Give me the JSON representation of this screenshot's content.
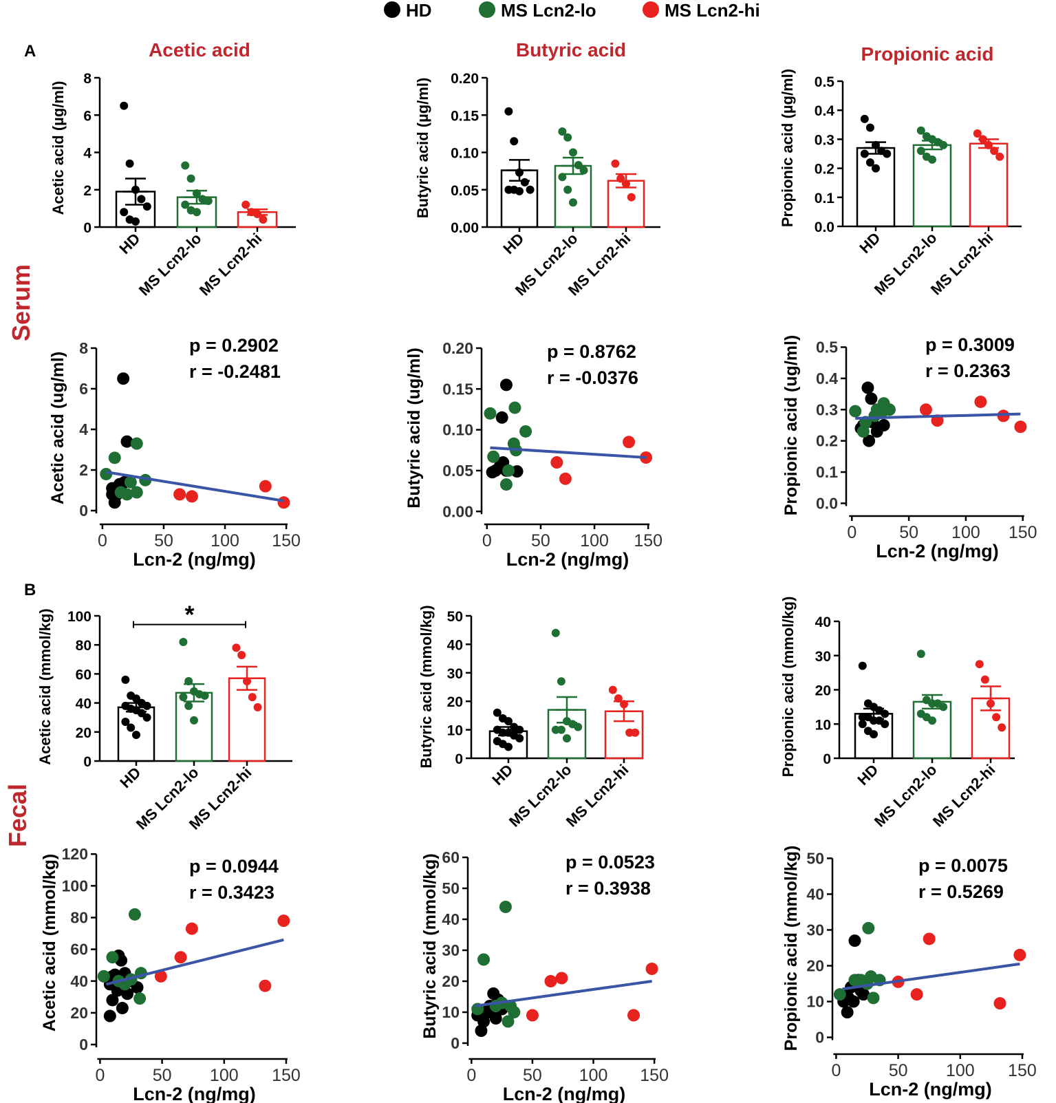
{
  "figure": {
    "legend": [
      {
        "label": "HD",
        "color": "#000000"
      },
      {
        "label": "MS Lcn2-lo",
        "color": "#1f6e34"
      },
      {
        "label": "MS Lcn2-hi",
        "color": "#e8231f"
      }
    ],
    "panel_labels": [
      "A",
      "B"
    ],
    "row_labels": [
      "Serum",
      "Fecal"
    ],
    "title_color": "#c0272d",
    "regression_color": "#3a54a6"
  },
  "chart_data": [
    {
      "id": "serum-acetic-bar",
      "type": "bar",
      "title": "Acetic acid",
      "ylabel": "Acetic acid (µg/ml)",
      "ylim": [
        0,
        8
      ],
      "yticks": [
        0,
        2,
        4,
        6,
        8
      ],
      "categories": [
        "HD",
        "MS Lcn2-lo",
        "MS Lcn2-hi"
      ],
      "values": [
        1.9,
        1.6,
        0.8
      ],
      "sem": [
        0.7,
        0.35,
        0.15
      ],
      "points": [
        [
          6.5,
          3.4,
          2.0,
          1.5,
          1.1,
          0.8,
          0.4,
          0.3
        ],
        [
          3.3,
          2.6,
          1.8,
          1.5,
          1.4,
          1.2,
          0.9,
          0.8
        ],
        [
          1.2,
          0.8,
          0.7,
          0.4
        ]
      ],
      "significance": ""
    },
    {
      "id": "serum-butyric-bar",
      "type": "bar",
      "title": "Butyric acid",
      "ylabel": "Butyric acid (µg/ml)",
      "ylim": [
        0,
        0.2
      ],
      "yticks": [
        0.0,
        0.05,
        0.1,
        0.15,
        0.2
      ],
      "tick_format": "0.00",
      "categories": [
        "HD",
        "MS Lcn2-lo",
        "MS Lcn2-hi"
      ],
      "values": [
        0.076,
        0.082,
        0.062
      ],
      "sem": [
        0.014,
        0.011,
        0.009
      ],
      "points": [
        [
          0.155,
          0.115,
          0.073,
          0.06,
          0.05,
          0.05,
          0.05,
          0.048
        ],
        [
          0.128,
          0.12,
          0.1,
          0.083,
          0.076,
          0.067,
          0.05,
          0.033
        ],
        [
          0.085,
          0.065,
          0.058,
          0.04
        ]
      ],
      "significance": ""
    },
    {
      "id": "serum-propionic-bar",
      "type": "bar",
      "title": "Propionic acid",
      "ylabel": "Propionic acid (µg/ml)",
      "ylim": [
        0,
        0.5
      ],
      "yticks": [
        0.0,
        0.1,
        0.2,
        0.3,
        0.4,
        0.5
      ],
      "tick_format": "0.0",
      "categories": [
        "HD",
        "MS Lcn2-lo",
        "MS Lcn2-hi"
      ],
      "values": [
        0.27,
        0.28,
        0.285
      ],
      "sem": [
        0.02,
        0.015,
        0.015
      ],
      "points": [
        [
          0.37,
          0.34,
          0.28,
          0.26,
          0.25,
          0.25,
          0.22,
          0.2
        ],
        [
          0.33,
          0.31,
          0.3,
          0.29,
          0.28,
          0.26,
          0.24,
          0.23
        ],
        [
          0.32,
          0.3,
          0.28,
          0.26,
          0.24
        ]
      ],
      "significance": ""
    },
    {
      "id": "serum-acetic-scatter",
      "type": "scatter",
      "xlabel": "Lcn-2 (ng/mg)",
      "ylabel": "Acetic acid (ug/ml)",
      "xlim": [
        -5,
        155
      ],
      "ylim": [
        -0.2,
        8.2
      ],
      "xticks": [
        0,
        50,
        100,
        150
      ],
      "yticks": [
        0,
        2,
        4,
        6,
        8
      ],
      "stats": {
        "p": "p = 0.2902",
        "r": "r  = -0.2481"
      },
      "regression": {
        "x": [
          3,
          148
        ],
        "y": [
          1.9,
          0.48
        ]
      },
      "series": [
        {
          "name": "HD",
          "x": [
            17,
            20,
            18,
            14,
            8,
            8,
            10,
            12
          ],
          "y": [
            6.5,
            3.4,
            1.4,
            1.3,
            1.1,
            0.8,
            0.4,
            0.8
          ]
        },
        {
          "name": "MS Lcn2-lo",
          "x": [
            3,
            10,
            28,
            23,
            15,
            20,
            35,
            28
          ],
          "y": [
            1.8,
            2.6,
            3.3,
            1.4,
            0.9,
            0.8,
            1.5,
            0.9
          ]
        },
        {
          "name": "MS Lcn2-hi",
          "x": [
            63,
            73,
            133,
            148
          ],
          "y": [
            0.8,
            0.7,
            1.2,
            0.4
          ]
        }
      ]
    },
    {
      "id": "serum-butyric-scatter",
      "type": "scatter",
      "xlabel": "Lcn-2 (ng/mg)",
      "ylabel": "Butyric acid (ug/ml)",
      "xlim": [
        -5,
        155
      ],
      "ylim": [
        -0.004,
        0.205
      ],
      "xticks": [
        0,
        50,
        100,
        150
      ],
      "yticks": [
        0.0,
        0.05,
        0.1,
        0.15,
        0.2
      ],
      "tick_format": "0.00",
      "stats": {
        "p": "p = 0.8762",
        "r": "r  = -0.0376"
      },
      "regression": {
        "x": [
          3,
          148
        ],
        "y": [
          0.078,
          0.066
        ]
      },
      "series": [
        {
          "name": "HD",
          "x": [
            18,
            14,
            15,
            5,
            8,
            12,
            18,
            28
          ],
          "y": [
            0.155,
            0.115,
            0.06,
            0.048,
            0.05,
            0.055,
            0.05,
            0.049
          ]
        },
        {
          "name": "MS Lcn2-lo",
          "x": [
            3,
            26,
            36,
            6,
            25,
            27,
            18,
            20
          ],
          "y": [
            0.12,
            0.127,
            0.098,
            0.067,
            0.083,
            0.075,
            0.033,
            0.05
          ]
        },
        {
          "name": "MS Lcn2-hi",
          "x": [
            65,
            73,
            132,
            148
          ],
          "y": [
            0.06,
            0.04,
            0.085,
            0.066
          ]
        }
      ]
    },
    {
      "id": "serum-propionic-scatter",
      "type": "scatter",
      "xlabel": "Lcn-2 (ng/mg)",
      "ylabel": "Propionic acid (ug/ml)",
      "xlim": [
        -5,
        155
      ],
      "ylim": [
        -0.01,
        0.51
      ],
      "xticks": [
        0,
        50,
        100,
        150
      ],
      "yticks": [
        0.0,
        0.1,
        0.2,
        0.3,
        0.4,
        0.5
      ],
      "tick_format": "0.0",
      "stats": {
        "p": "p = 0.3009",
        "r": "r  = 0.2363"
      },
      "regression": {
        "x": [
          3,
          148
        ],
        "y": [
          0.272,
          0.286
        ]
      },
      "series": [
        {
          "name": "HD",
          "x": [
            14,
            17,
            10,
            8,
            18,
            28,
            22,
            15
          ],
          "y": [
            0.37,
            0.335,
            0.25,
            0.24,
            0.26,
            0.25,
            0.23,
            0.2
          ]
        },
        {
          "name": "MS Lcn2-lo",
          "x": [
            3,
            28,
            22,
            33,
            26,
            20,
            10,
            12
          ],
          "y": [
            0.295,
            0.32,
            0.3,
            0.3,
            0.29,
            0.28,
            0.23,
            0.26
          ]
        },
        {
          "name": "MS Lcn2-hi",
          "x": [
            65,
            75,
            113,
            133,
            148
          ],
          "y": [
            0.3,
            0.265,
            0.325,
            0.28,
            0.245
          ]
        }
      ]
    },
    {
      "id": "fecal-acetic-bar",
      "type": "bar",
      "title": "",
      "ylabel": "Acetic acid (mmol/kg)",
      "ylim": [
        0,
        100
      ],
      "yticks": [
        0,
        20,
        40,
        60,
        80,
        100
      ],
      "categories": [
        "HD",
        "MS Lcn2-lo",
        "MS Lcn2-hi"
      ],
      "values": [
        37,
        47,
        57
      ],
      "sem": [
        3,
        6,
        8
      ],
      "points": [
        [
          56,
          45,
          43,
          40,
          38,
          38,
          36,
          35,
          33,
          30,
          27,
          23,
          18
        ],
        [
          82,
          55,
          48,
          46,
          45,
          44,
          38,
          28
        ],
        [
          78,
          73,
          55,
          44,
          37
        ]
      ],
      "significance": "*"
    },
    {
      "id": "fecal-butyric-bar",
      "type": "bar",
      "title": "",
      "ylabel": "Butyric acid (mmol/kg)",
      "ylim": [
        0,
        50
      ],
      "yticks": [
        0,
        10,
        20,
        30,
        40,
        50
      ],
      "categories": [
        "HD",
        "MS Lcn2-lo",
        "MS Lcn2-hi"
      ],
      "values": [
        9.5,
        17,
        16.5
      ],
      "sem": [
        1.5,
        4.5,
        3.5
      ],
      "points": [
        [
          16,
          14,
          13,
          11,
          10,
          10,
          9,
          9,
          8,
          7,
          6,
          5,
          4
        ],
        [
          44,
          27,
          13,
          12,
          11,
          10,
          10,
          7
        ],
        [
          24,
          21,
          19,
          9,
          9
        ]
      ],
      "significance": ""
    },
    {
      "id": "fecal-propionic-bar",
      "type": "bar",
      "title": "",
      "ylabel": "Propionic acid (mmol/kg)",
      "ylim": [
        0,
        40
      ],
      "yticks": [
        0,
        10,
        20,
        30,
        40
      ],
      "categories": [
        "HD",
        "MS Lcn2-lo",
        "MS Lcn2-hi"
      ],
      "values": [
        13,
        16.5,
        17.5
      ],
      "sem": [
        1.5,
        2,
        3.5
      ],
      "points": [
        [
          27,
          16,
          15,
          14,
          13,
          12,
          12,
          11,
          11,
          10,
          10,
          8,
          7
        ],
        [
          30.5,
          17,
          16,
          16,
          15,
          13,
          12,
          11
        ],
        [
          27.5,
          23,
          16,
          12,
          9
        ]
      ],
      "significance": ""
    },
    {
      "id": "fecal-acetic-scatter",
      "type": "scatter",
      "xlabel": "Lcn-2 (ng/mg)",
      "ylabel": "Acetic acid (mmol/kg)",
      "xlim": [
        -3,
        155
      ],
      "ylim": [
        -3,
        124
      ],
      "xticks": [
        0,
        50,
        100,
        150
      ],
      "yticks": [
        0,
        20,
        40,
        60,
        80,
        100,
        120
      ],
      "stats": {
        "p": "p = 0.0944",
        "r": "r  = 0.3423"
      },
      "regression": {
        "x": [
          5,
          148
        ],
        "y": [
          38,
          66
        ]
      },
      "series": [
        {
          "name": "HD",
          "x": [
            15,
            17,
            10,
            12,
            20,
            8,
            14,
            25,
            30,
            18,
            10,
            8,
            22
          ],
          "y": [
            56,
            53,
            43,
            44,
            45,
            38,
            34,
            40,
            36,
            23,
            28,
            18,
            32
          ]
        },
        {
          "name": "MS Lcn2-lo",
          "x": [
            28,
            10,
            3,
            33,
            20,
            25,
            15,
            32
          ],
          "y": [
            82,
            55,
            43,
            45,
            38,
            41,
            40,
            29
          ]
        },
        {
          "name": "MS Lcn2-hi",
          "x": [
            49,
            65,
            74,
            133,
            148
          ],
          "y": [
            43,
            55,
            73,
            37,
            78
          ]
        }
      ]
    },
    {
      "id": "fecal-butyric-scatter",
      "type": "scatter",
      "xlabel": "Lcn-2 (ng/mg)",
      "ylabel": "Butyric acid (mmol/kg)",
      "xlim": [
        -3,
        155
      ],
      "ylim": [
        -2,
        62
      ],
      "xticks": [
        0,
        50,
        100,
        150
      ],
      "yticks": [
        0,
        10,
        20,
        30,
        40,
        50,
        60
      ],
      "stats": {
        "p": "p = 0.0523",
        "r": "r  = 0.3938"
      },
      "regression": {
        "x": [
          3,
          148
        ],
        "y": [
          12,
          20
        ]
      },
      "series": [
        {
          "name": "HD",
          "x": [
            18,
            22,
            15,
            12,
            8,
            25,
            10,
            20,
            14,
            5,
            28,
            8
          ],
          "y": [
            16,
            14,
            12,
            10,
            9,
            11,
            7,
            8,
            10,
            9,
            12,
            4
          ]
        },
        {
          "name": "MS Lcn2-lo",
          "x": [
            28,
            10,
            5,
            35,
            25,
            20,
            30,
            32
          ],
          "y": [
            44,
            27,
            11,
            10,
            13,
            12,
            7,
            12
          ]
        },
        {
          "name": "MS Lcn2-hi",
          "x": [
            50,
            65,
            74,
            133,
            148
          ],
          "y": [
            9,
            20,
            21,
            9,
            24
          ]
        }
      ]
    },
    {
      "id": "fecal-propionic-scatter",
      "type": "scatter",
      "xlabel": "Lcn-2 (ng/mg)",
      "ylabel": "Propionic acid (mmol/kg)",
      "xlim": [
        -3,
        155
      ],
      "ylim": [
        -2,
        52
      ],
      "xticks": [
        0,
        50,
        100,
        150
      ],
      "yticks": [
        0,
        10,
        20,
        30,
        40,
        50
      ],
      "stats": {
        "p": "p = 0.0075",
        "r": "r  = 0.5269"
      },
      "regression": {
        "x": [
          5,
          148
        ],
        "y": [
          13.5,
          20.5
        ]
      },
      "series": [
        {
          "name": "HD",
          "x": [
            15,
            18,
            12,
            8,
            10,
            20,
            14,
            6,
            25,
            22,
            9
          ],
          "y": [
            27,
            16,
            14,
            12,
            11,
            13,
            10,
            10,
            15,
            12,
            7
          ]
        },
        {
          "name": "MS Lcn2-lo",
          "x": [
            26,
            3,
            20,
            35,
            25,
            15,
            30,
            28
          ],
          "y": [
            30.5,
            12,
            16,
            16,
            15,
            16,
            11,
            17
          ]
        },
        {
          "name": "MS Lcn2-hi",
          "x": [
            50,
            65,
            75,
            132,
            148
          ],
          "y": [
            15.5,
            12,
            27.5,
            9.5,
            23
          ]
        }
      ]
    }
  ]
}
